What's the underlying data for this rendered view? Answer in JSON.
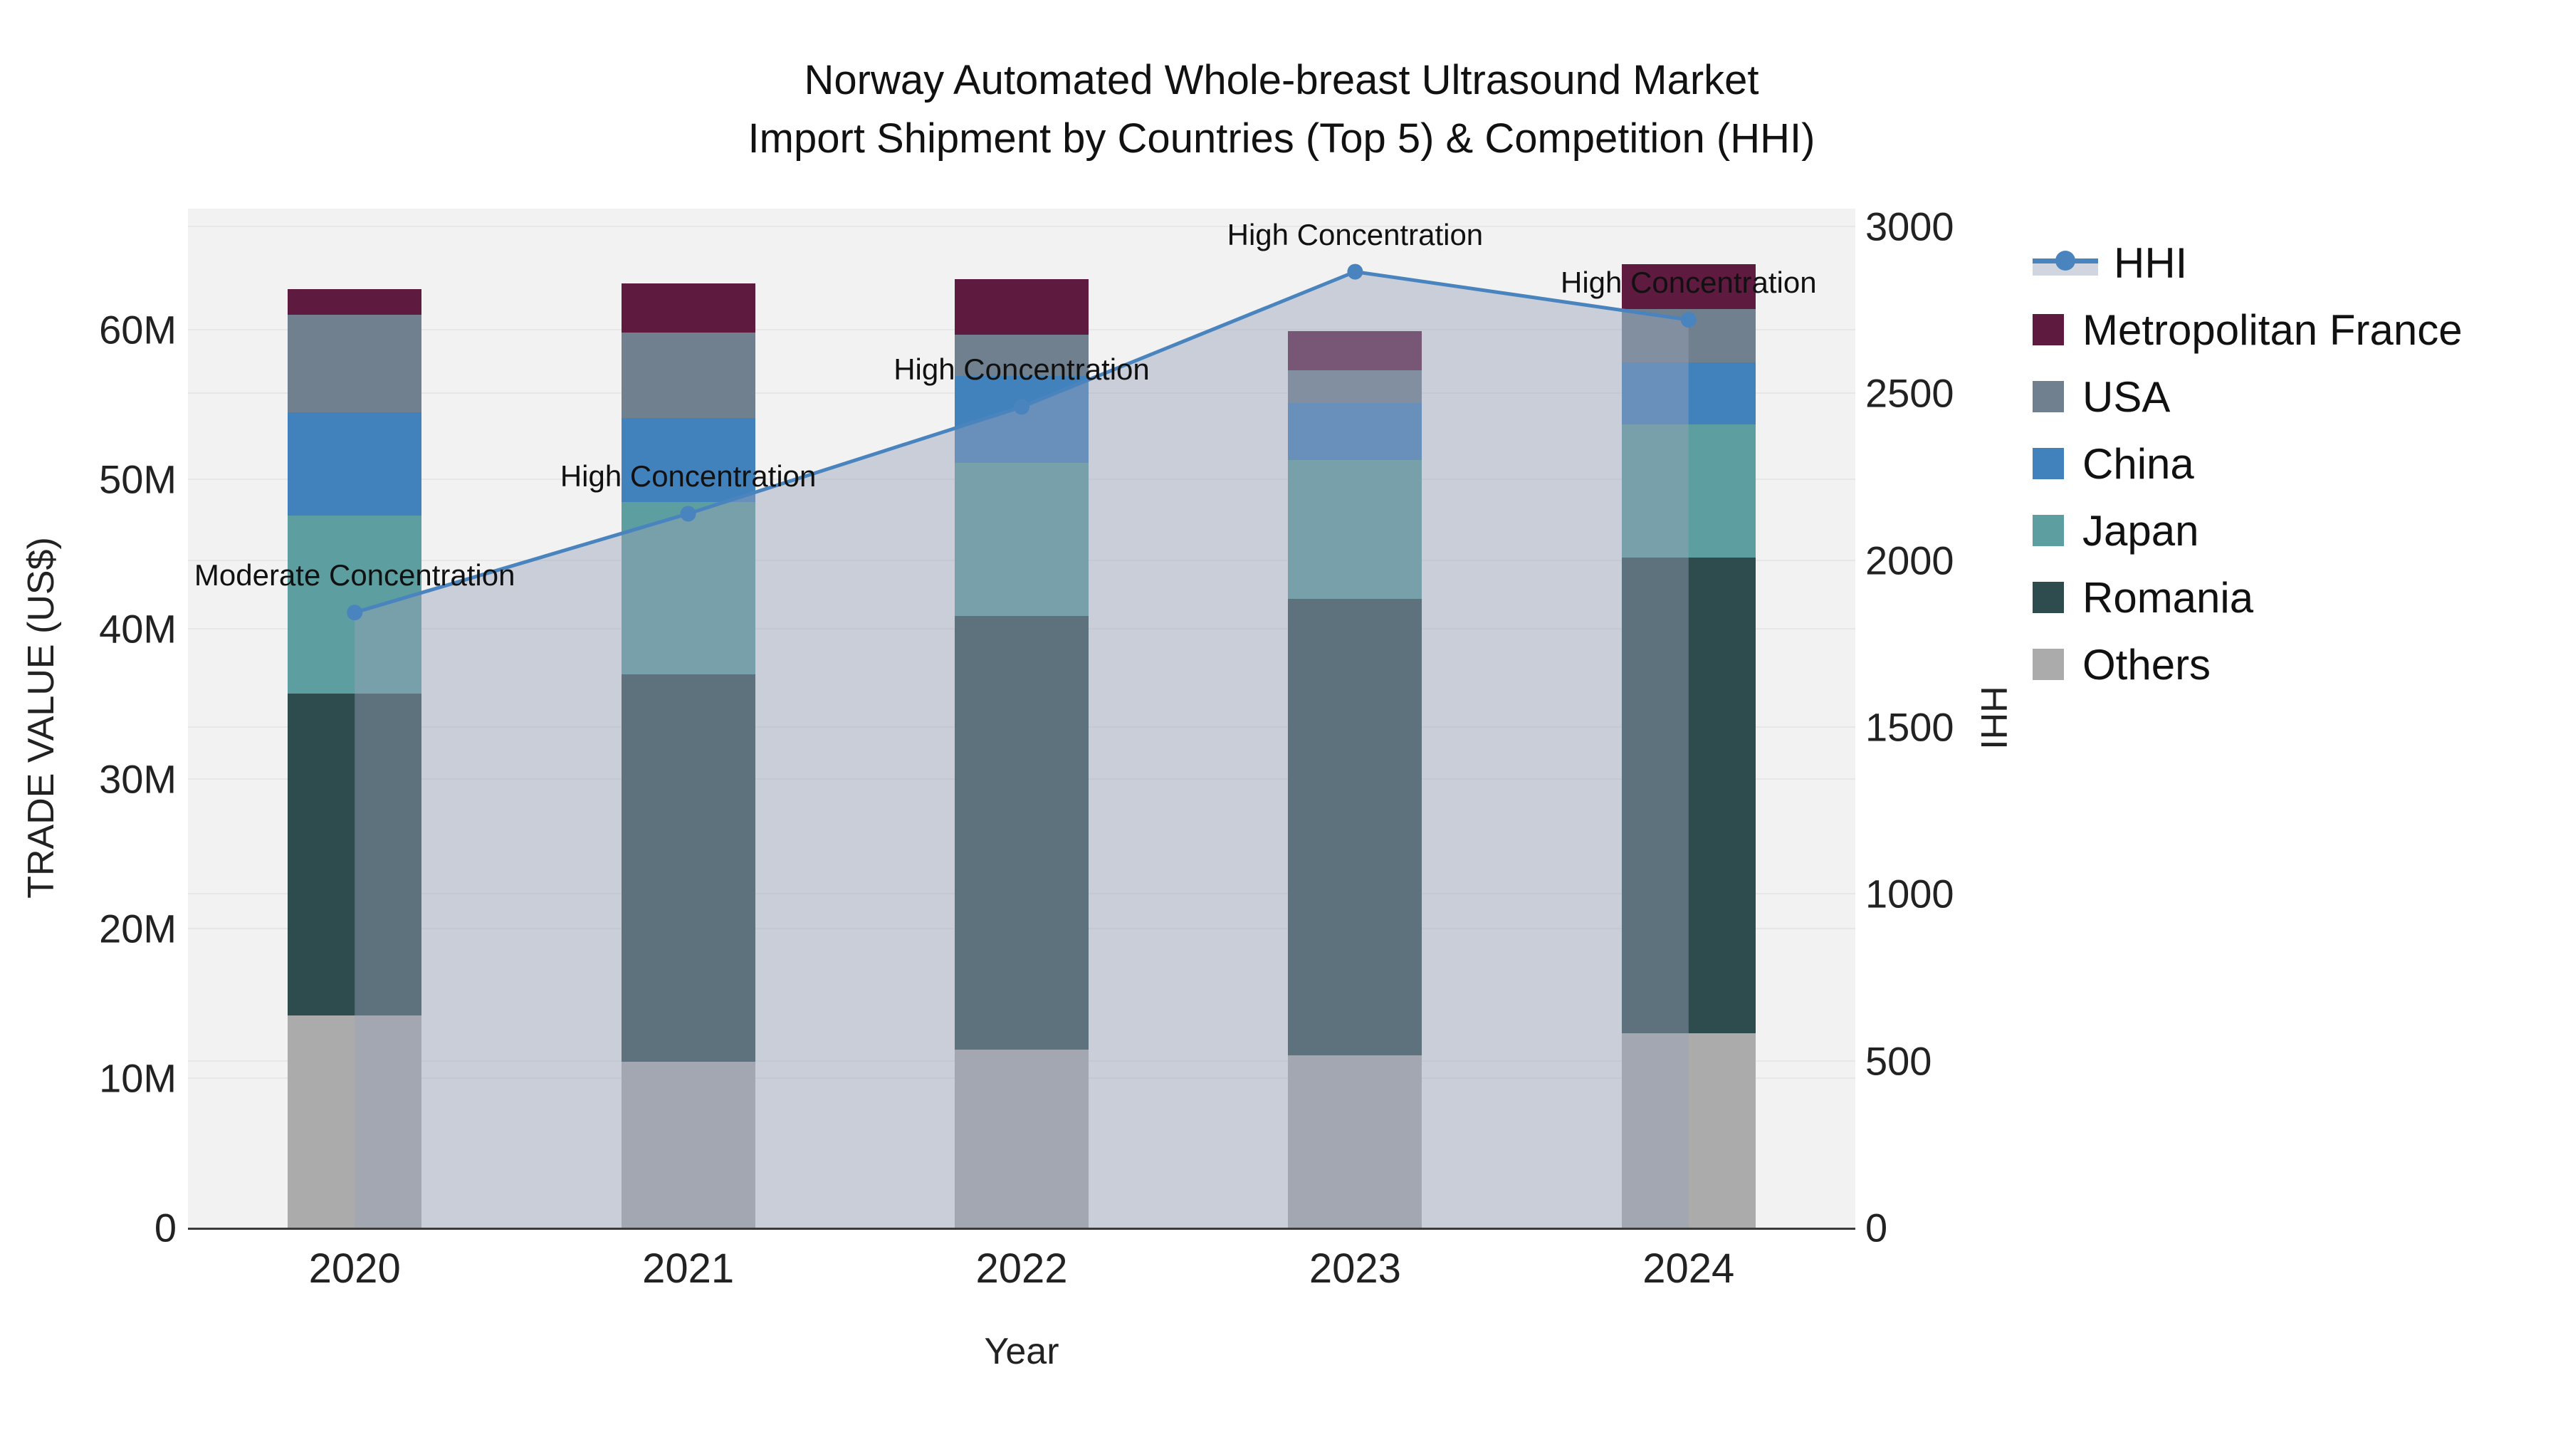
{
  "title": {
    "line1": "Norway Automated Whole-breast Ultrasound Market",
    "line2": "Import Shipment by Countries (Top 5) & Competition (HHI)"
  },
  "axes": {
    "x_label": "Year",
    "y_left_label": "TRADE VALUE (US$)",
    "y_right_label": "HHI"
  },
  "legend": {
    "items": [
      "HHI",
      "Metropolitan France",
      "USA",
      "China",
      "Japan",
      "Romania",
      "Others"
    ]
  },
  "colors": {
    "hhi_line": "#4a84be",
    "hhi_fill": "rgba(150,162,185,0.45)",
    "plot_background": "#f2f2f2",
    "grid": "#e7e7e7",
    "Metropolitan France": "#5f1a40",
    "USA": "#70808f",
    "China": "#4282bc",
    "Japan": "#5d9ea1",
    "Romania": "#2e4c4d",
    "Others": "#ababab"
  },
  "chart_data": {
    "type": "bar+line",
    "stacked": true,
    "categories": [
      "2020",
      "2021",
      "2022",
      "2023",
      "2024"
    ],
    "value_unit": "million US$",
    "series": [
      {
        "name": "Others",
        "values": [
          14.2,
          11.1,
          11.9,
          11.5,
          13.0
        ]
      },
      {
        "name": "Romania",
        "values": [
          21.5,
          25.9,
          29.0,
          30.5,
          31.8
        ]
      },
      {
        "name": "Japan",
        "values": [
          11.9,
          11.5,
          10.2,
          9.3,
          8.9
        ]
      },
      {
        "name": "China",
        "values": [
          6.9,
          5.6,
          5.8,
          3.8,
          4.1
        ]
      },
      {
        "name": "USA",
        "values": [
          6.5,
          5.7,
          2.8,
          2.2,
          3.6
        ]
      },
      {
        "name": "Metropolitan France",
        "values": [
          1.7,
          3.3,
          3.7,
          2.6,
          3.0
        ]
      }
    ],
    "bar_totals": [
      62.7,
      63.1,
      63.4,
      59.9,
      64.4
    ],
    "line_series": {
      "name": "HHI",
      "axis": "right",
      "values": [
        1843,
        2139,
        2459,
        2864,
        2720
      ]
    },
    "annotations": [
      {
        "category": "2020",
        "text": "Moderate Concentration"
      },
      {
        "category": "2021",
        "text": "High Concentration"
      },
      {
        "category": "2022",
        "text": "High Concentration"
      },
      {
        "category": "2023",
        "text": "High Concentration"
      },
      {
        "category": "2024",
        "text": "High Concentration"
      }
    ],
    "xlabel": "Year",
    "ylabel_left": "TRADE VALUE (US$)",
    "ylabel_right": "HHI",
    "ylim_left_millions": [
      0,
      68.1
    ],
    "ylim_right": [
      0,
      3053
    ],
    "yticks_left": [
      "0",
      "10M",
      "20M",
      "30M",
      "40M",
      "50M",
      "60M"
    ],
    "yticks_left_values": [
      0,
      10,
      20,
      30,
      40,
      50,
      60
    ],
    "yticks_right": [
      "0",
      "500",
      "1000",
      "1500",
      "2000",
      "2500",
      "3000"
    ],
    "yticks_right_values": [
      0,
      500,
      1000,
      1500,
      2000,
      2500,
      3000
    ],
    "grid": true,
    "legend_position": "right"
  }
}
